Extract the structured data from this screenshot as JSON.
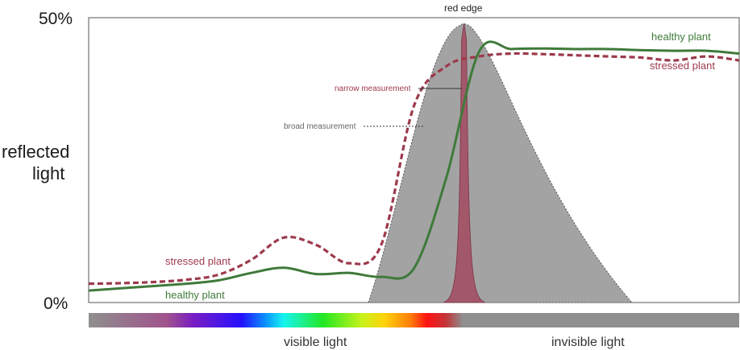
{
  "chart_data": {
    "type": "line",
    "ylabel_lines": [
      "reflected",
      "light"
    ],
    "yticks": [
      "0%",
      "50%"
    ],
    "ylim": [
      0,
      50
    ],
    "x": [
      0,
      5,
      10,
      15,
      20,
      25,
      30,
      35,
      40,
      45,
      50,
      55,
      60,
      65,
      70,
      75,
      80,
      85,
      90,
      95,
      100
    ],
    "series": [
      {
        "name": "healthy plant",
        "color": "#3f7a3a",
        "dash": "solid",
        "values": [
          2.1,
          2.5,
          2.9,
          3.3,
          3.9,
          5.2,
          6.1,
          5.0,
          5.2,
          4.5,
          6.0,
          22.0,
          44.0,
          44.5,
          44.6,
          44.5,
          44.5,
          44.3,
          44.2,
          44.2,
          43.7
        ]
      },
      {
        "name": "stressed plant",
        "color": "#9c3a4c",
        "dash": "dashed",
        "values": [
          3.3,
          3.4,
          3.6,
          4.0,
          4.9,
          7.5,
          11.4,
          10.1,
          6.9,
          10.2,
          34.5,
          41.5,
          43.2,
          43.7,
          43.6,
          43.4,
          43.2,
          43.0,
          42.5,
          43.2,
          42.5
        ]
      }
    ],
    "bands": [
      {
        "name": "broad measurement",
        "color": "#a3a3a3",
        "x_range": [
          43,
          83.5
        ],
        "peak_x": 57.7,
        "peak_value": 49
      },
      {
        "name": "narrow measurement",
        "color": "#a3576a",
        "x_range": [
          54.5,
          61
        ],
        "peak_x": 57.7,
        "peak_value": 49
      }
    ],
    "annotations": {
      "peak_label": "red edge",
      "narrow_label": "narrow measurement",
      "broad_label": "broad measurement"
    },
    "spectrum_bar": {
      "visible_label": "visible light",
      "invisible_label": "invisible light",
      "gray": "#8f8f8f",
      "colors": [
        "#8f8f8f",
        "#a0538c",
        "#7a1dc2",
        "#2411ff",
        "#0b8cff",
        "#15f5ef",
        "#21e824",
        "#c8f21a",
        "#ffd20a",
        "#ff7d0a",
        "#ff1212",
        "#c2363a",
        "#8f8f8f"
      ]
    }
  }
}
